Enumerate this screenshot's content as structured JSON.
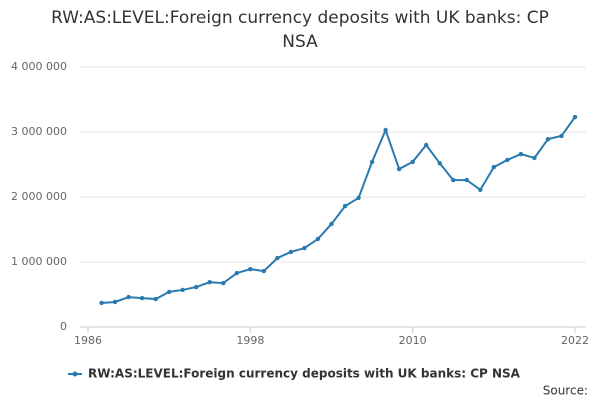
{
  "chart_data": {
    "type": "line",
    "title": "RW:AS:LEVEL:Foreign currency deposits with UK banks: CP NSA",
    "x": [
      1987,
      1988,
      1989,
      1990,
      1991,
      1992,
      1993,
      1994,
      1995,
      1996,
      1997,
      1998,
      1999,
      2000,
      2001,
      2002,
      2003,
      2004,
      2005,
      2006,
      2007,
      2008,
      2009,
      2010,
      2011,
      2012,
      2013,
      2014,
      2015,
      2016,
      2017,
      2018,
      2019,
      2020,
      2021,
      2022
    ],
    "series": [
      {
        "name": "RW:AS:LEVEL:Foreign currency deposits with UK banks: CP NSA",
        "color": "#2a7ab0",
        "values": [
          370000,
          385000,
          460000,
          445000,
          430000,
          540000,
          570000,
          615000,
          690000,
          675000,
          830000,
          890000,
          860000,
          1060000,
          1155000,
          1215000,
          1355000,
          1585000,
          1860000,
          1985000,
          2540000,
          3030000,
          2430000,
          2540000,
          2800000,
          2520000,
          2260000,
          2260000,
          2110000,
          2460000,
          2570000,
          2660000,
          2600000,
          2890000,
          2940000,
          3230000
        ]
      }
    ],
    "xlim": [
      1986,
      2022
    ],
    "xticks": [
      1986,
      1998,
      2010,
      2022
    ],
    "ylim": [
      0,
      4000000
    ],
    "yticks": [
      0,
      {
        "value": 1000000,
        "label": "1 000 000"
      },
      {
        "value": 2000000,
        "label": "2 000 000"
      },
      {
        "value": 3000000,
        "label": "3 000 000"
      },
      {
        "value": 4000000,
        "label": "4 000 000"
      }
    ],
    "grid": true,
    "source": "Source:"
  }
}
